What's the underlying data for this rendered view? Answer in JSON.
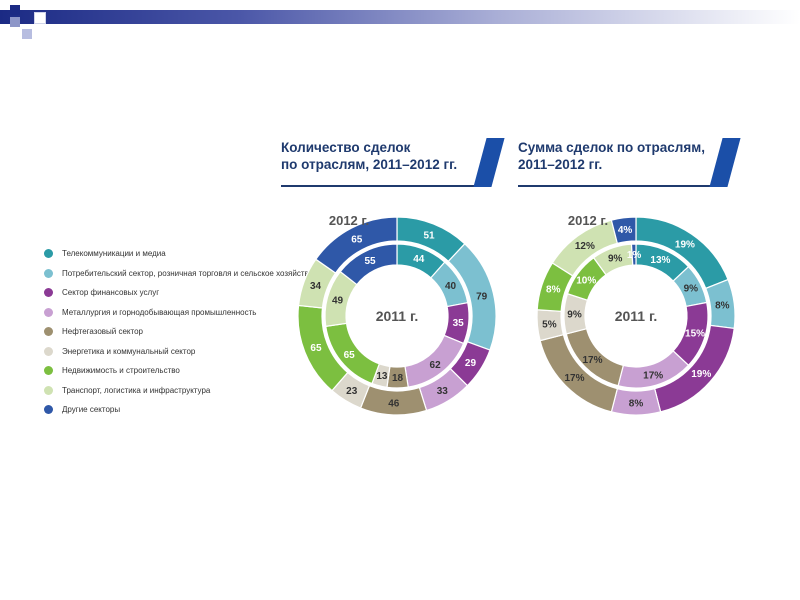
{
  "colors": {
    "deco_dark": "#1b2a84",
    "deco_mid": "#4b57a8",
    "deco_light": "#a9aed6",
    "heading": "#1f3a6e",
    "stripe": "#1b4fa8"
  },
  "headings": {
    "left": {
      "line1": "Количество сделок",
      "line2": "по отраслям, 2011–2012 гг."
    },
    "right": {
      "line1": "Сумма сделок по отраслям,",
      "line2": "2011–2012 гг."
    }
  },
  "legend": [
    {
      "label": "Телекоммуникации и медиа",
      "color": "#2b9ba6"
    },
    {
      "label": "Потребительский сектор, розничная торговля и сельское хозяйство",
      "color": "#7cc0d0"
    },
    {
      "label": "Сектор финансовых услуг",
      "color": "#8b3a95"
    },
    {
      "label": "Металлургия и горнодобывающая промышленность",
      "color": "#c8a0d2"
    },
    {
      "label": "Нефтегазовый сектор",
      "color": "#9e9070"
    },
    {
      "label": "Энергетика и коммунальный сектор",
      "color": "#dcd8cc"
    },
    {
      "label": "Недвижимость и строительство",
      "color": "#7cbf40"
    },
    {
      "label": "Транспорт, логистика и инфраструктура",
      "color": "#cfe2b2"
    },
    {
      "label": "Другие секторы",
      "color": "#2f58a8"
    }
  ],
  "chart_data": [
    {
      "type": "pie",
      "title": "Количество сделок по отраслям, 2011–2012 гг.",
      "outer_label": "2012 г.",
      "inner_label": "2011 г.",
      "categories": [
        "Телекоммуникации и медиа",
        "Потребительский сектор, розничная торговля и сельское хозяйство",
        "Сектор финансовых услуг",
        "Металлургия и горнодобывающая промышленность",
        "Нефтегазовый сектор",
        "Энергетика и коммунальный сектор",
        "Недвижимость и строительство",
        "Транспорт, логистика и инфраструктура",
        "Другие секторы"
      ],
      "series": [
        {
          "name": "2012 г.",
          "values": [
            51,
            79,
            29,
            33,
            46,
            23,
            65,
            34,
            65
          ],
          "labels": [
            "51",
            "79",
            "29",
            "33",
            "46",
            "23",
            "65",
            "34",
            "65"
          ]
        },
        {
          "name": "2011 г.",
          "values": [
            44,
            40,
            35,
            62,
            18,
            13,
            65,
            49,
            55
          ],
          "labels": [
            "44",
            "40",
            "35",
            "62",
            "18",
            "13",
            "65",
            "49",
            "55"
          ]
        }
      ]
    },
    {
      "type": "pie",
      "title": "Сумма сделок по отраслям, 2011–2012 гг.",
      "outer_label": "2012 г.",
      "inner_label": "2011 г.",
      "categories": [
        "Телекоммуникации и медиа",
        "Потребительский сектор, розничная торговля и сельское хозяйство",
        "Сектор финансовых услуг",
        "Металлургия и горнодобывающая промышленность",
        "Нефтегазовый сектор",
        "Энергетика и коммунальный сектор",
        "Недвижимость и строительство",
        "Транспорт, логистика и инфраструктура",
        "Другие секторы"
      ],
      "series": [
        {
          "name": "2012 г.",
          "values": [
            19,
            8,
            19,
            8,
            17,
            5,
            8,
            12,
            4
          ],
          "labels": [
            "19%",
            "8%",
            "19%",
            "8%",
            "17%",
            "5%",
            "8%",
            "12%",
            "4%"
          ]
        },
        {
          "name": "2011 г.",
          "values": [
            13,
            9,
            15,
            17,
            17,
            9,
            10,
            9,
            1
          ],
          "labels": [
            "13%",
            "9%",
            "15%",
            "17%",
            "17%",
            "9%",
            "10%",
            "9%",
            "1%"
          ]
        }
      ]
    }
  ]
}
